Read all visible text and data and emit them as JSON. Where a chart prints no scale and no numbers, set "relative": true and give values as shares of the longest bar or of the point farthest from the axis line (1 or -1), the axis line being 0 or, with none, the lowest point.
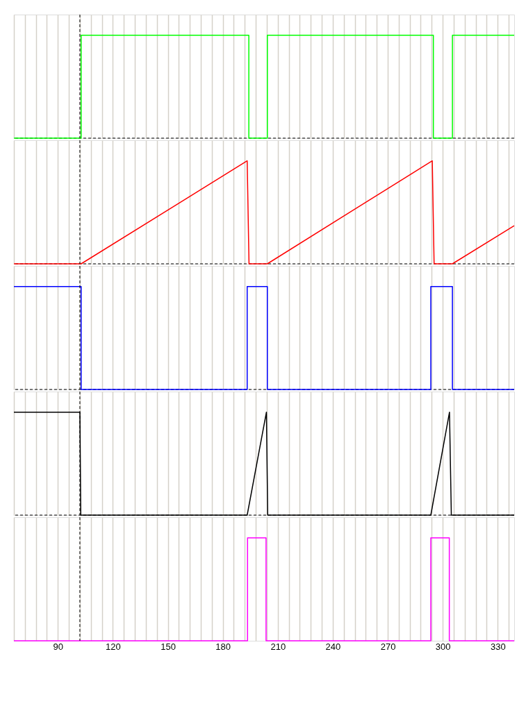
{
  "chart_data": [
    {
      "type": "line",
      "relative": true,
      "grid": "x",
      "tick_labels": false,
      "xlim": [
        66,
        339
      ],
      "xticks": [
        {
          "value": 66,
          "label": null
        },
        {
          "value": 72,
          "label": null
        },
        {
          "value": 78,
          "label": null
        },
        {
          "value": 84,
          "label": null
        },
        90,
        {
          "value": 96,
          "label": null
        },
        {
          "value": 102,
          "label": null
        },
        {
          "value": 108,
          "label": null
        },
        {
          "value": 114,
          "label": null
        },
        120,
        {
          "value": 126,
          "label": null
        },
        {
          "value": 132,
          "label": null
        },
        {
          "value": 138,
          "label": null
        },
        {
          "value": 144,
          "label": null
        },
        150,
        {
          "value": 156,
          "label": null
        },
        {
          "value": 162,
          "label": null
        },
        {
          "value": 168,
          "label": null
        },
        {
          "value": 174,
          "label": null
        },
        180,
        {
          "value": 186,
          "label": null
        },
        {
          "value": 192,
          "label": null
        },
        {
          "value": 198,
          "label": null
        },
        {
          "value": 204,
          "label": null
        },
        210,
        {
          "value": 216,
          "label": null
        },
        {
          "value": 222,
          "label": null
        },
        {
          "value": 228,
          "label": null
        },
        {
          "value": 234,
          "label": null
        },
        240,
        {
          "value": 246,
          "label": null
        },
        {
          "value": 252,
          "label": null
        },
        {
          "value": 258,
          "label": null
        },
        {
          "value": 264,
          "label": null
        },
        270,
        {
          "value": 276,
          "label": null
        },
        {
          "value": 282,
          "label": null
        },
        {
          "value": 288,
          "label": null
        },
        {
          "value": 294,
          "label": null
        },
        300,
        {
          "value": 306,
          "label": null
        },
        {
          "value": 312,
          "label": null
        },
        {
          "value": 318,
          "label": null
        },
        {
          "value": 324,
          "label": null
        },
        330,
        {
          "value": 336,
          "label": null
        }
      ],
      "series": [
        {
          "color": "#00ff00",
          "x": [
            66,
            102.7,
            102.7,
            194.2,
            194.2,
            204.3,
            204.3,
            294.9,
            294.9,
            305.3,
            305.3,
            339
          ],
          "values": [
            0,
            0,
            1,
            1,
            0,
            0,
            1,
            1,
            0,
            0,
            1,
            1
          ]
        }
      ],
      "ref_lines": [
        {
          "axis": "y",
          "value": 0,
          "line_style": "dashed",
          "color": "#000000"
        },
        {
          "axis": "x",
          "value": 102,
          "line_style": "dashed",
          "color": "#000000"
        }
      ]
    },
    {
      "type": "line",
      "relative": true,
      "grid": "x",
      "tick_labels": false,
      "xlim": [
        66,
        339
      ],
      "xticks": [
        {
          "value": 66,
          "label": null
        },
        {
          "value": 72,
          "label": null
        },
        {
          "value": 78,
          "label": null
        },
        {
          "value": 84,
          "label": null
        },
        90,
        {
          "value": 96,
          "label": null
        },
        {
          "value": 102,
          "label": null
        },
        {
          "value": 108,
          "label": null
        },
        {
          "value": 114,
          "label": null
        },
        120,
        {
          "value": 126,
          "label": null
        },
        {
          "value": 132,
          "label": null
        },
        {
          "value": 138,
          "label": null
        },
        {
          "value": 144,
          "label": null
        },
        150,
        {
          "value": 156,
          "label": null
        },
        {
          "value": 162,
          "label": null
        },
        {
          "value": 168,
          "label": null
        },
        {
          "value": 174,
          "label": null
        },
        180,
        {
          "value": 186,
          "label": null
        },
        {
          "value": 192,
          "label": null
        },
        {
          "value": 198,
          "label": null
        },
        {
          "value": 204,
          "label": null
        },
        210,
        {
          "value": 216,
          "label": null
        },
        {
          "value": 222,
          "label": null
        },
        {
          "value": 228,
          "label": null
        },
        {
          "value": 234,
          "label": null
        },
        240,
        {
          "value": 246,
          "label": null
        },
        {
          "value": 252,
          "label": null
        },
        {
          "value": 258,
          "label": null
        },
        {
          "value": 264,
          "label": null
        },
        270,
        {
          "value": 276,
          "label": null
        },
        {
          "value": 282,
          "label": null
        },
        {
          "value": 288,
          "label": null
        },
        {
          "value": 294,
          "label": null
        },
        300,
        {
          "value": 306,
          "label": null
        },
        {
          "value": 312,
          "label": null
        },
        {
          "value": 318,
          "label": null
        },
        {
          "value": 324,
          "label": null
        },
        330,
        {
          "value": 336,
          "label": null
        }
      ],
      "series": [
        {
          "color": "#ff0000",
          "x": [
            66,
            102.7,
            193.3,
            194.3,
            204.3,
            294.3,
            295.3,
            305.3,
            339
          ],
          "values": [
            0,
            0,
            1,
            0,
            0,
            1,
            0,
            0,
            0.37
          ]
        }
      ],
      "ref_lines": [
        {
          "axis": "y",
          "value": 0,
          "line_style": "dashed",
          "color": "#000000"
        },
        {
          "axis": "x",
          "value": 102,
          "line_style": "dashed",
          "color": "#000000"
        }
      ]
    },
    {
      "type": "line",
      "relative": true,
      "grid": "x",
      "tick_labels": false,
      "xlim": [
        66,
        339
      ],
      "xticks": [
        {
          "value": 66,
          "label": null
        },
        {
          "value": 72,
          "label": null
        },
        {
          "value": 78,
          "label": null
        },
        {
          "value": 84,
          "label": null
        },
        90,
        {
          "value": 96,
          "label": null
        },
        {
          "value": 102,
          "label": null
        },
        {
          "value": 108,
          "label": null
        },
        {
          "value": 114,
          "label": null
        },
        120,
        {
          "value": 126,
          "label": null
        },
        {
          "value": 132,
          "label": null
        },
        {
          "value": 138,
          "label": null
        },
        {
          "value": 144,
          "label": null
        },
        150,
        {
          "value": 156,
          "label": null
        },
        {
          "value": 162,
          "label": null
        },
        {
          "value": 168,
          "label": null
        },
        {
          "value": 174,
          "label": null
        },
        180,
        {
          "value": 186,
          "label": null
        },
        {
          "value": 192,
          "label": null
        },
        {
          "value": 198,
          "label": null
        },
        {
          "value": 204,
          "label": null
        },
        210,
        {
          "value": 216,
          "label": null
        },
        {
          "value": 222,
          "label": null
        },
        {
          "value": 228,
          "label": null
        },
        {
          "value": 234,
          "label": null
        },
        240,
        {
          "value": 246,
          "label": null
        },
        {
          "value": 252,
          "label": null
        },
        {
          "value": 258,
          "label": null
        },
        {
          "value": 264,
          "label": null
        },
        270,
        {
          "value": 276,
          "label": null
        },
        {
          "value": 282,
          "label": null
        },
        {
          "value": 288,
          "label": null
        },
        {
          "value": 294,
          "label": null
        },
        300,
        {
          "value": 306,
          "label": null
        },
        {
          "value": 312,
          "label": null
        },
        {
          "value": 318,
          "label": null
        },
        {
          "value": 324,
          "label": null
        },
        330,
        {
          "value": 336,
          "label": null
        }
      ],
      "series": [
        {
          "color": "#0000ff",
          "x": [
            66,
            102.7,
            102.7,
            193.3,
            193.3,
            204.3,
            204.3,
            293.5,
            293.5,
            305.3,
            305.3,
            339
          ],
          "values": [
            1,
            1,
            0,
            0,
            1,
            1,
            0,
            0,
            1,
            1,
            0,
            0
          ]
        }
      ],
      "ref_lines": [
        {
          "axis": "y",
          "value": 0,
          "line_style": "dashed",
          "color": "#000000"
        },
        {
          "axis": "x",
          "value": 102,
          "line_style": "dashed",
          "color": "#000000"
        }
      ]
    },
    {
      "type": "line",
      "relative": true,
      "grid": "x",
      "tick_labels": false,
      "xlim": [
        66,
        339
      ],
      "xticks": [
        {
          "value": 66,
          "label": null
        },
        {
          "value": 72,
          "label": null
        },
        {
          "value": 78,
          "label": null
        },
        {
          "value": 84,
          "label": null
        },
        90,
        {
          "value": 96,
          "label": null
        },
        {
          "value": 102,
          "label": null
        },
        {
          "value": 108,
          "label": null
        },
        {
          "value": 114,
          "label": null
        },
        120,
        {
          "value": 126,
          "label": null
        },
        {
          "value": 132,
          "label": null
        },
        {
          "value": 138,
          "label": null
        },
        {
          "value": 144,
          "label": null
        },
        150,
        {
          "value": 156,
          "label": null
        },
        {
          "value": 162,
          "label": null
        },
        {
          "value": 168,
          "label": null
        },
        {
          "value": 174,
          "label": null
        },
        180,
        {
          "value": 186,
          "label": null
        },
        {
          "value": 192,
          "label": null
        },
        {
          "value": 198,
          "label": null
        },
        {
          "value": 204,
          "label": null
        },
        210,
        {
          "value": 216,
          "label": null
        },
        {
          "value": 222,
          "label": null
        },
        {
          "value": 228,
          "label": null
        },
        {
          "value": 234,
          "label": null
        },
        240,
        {
          "value": 246,
          "label": null
        },
        {
          "value": 252,
          "label": null
        },
        {
          "value": 258,
          "label": null
        },
        {
          "value": 264,
          "label": null
        },
        270,
        {
          "value": 276,
          "label": null
        },
        {
          "value": 282,
          "label": null
        },
        {
          "value": 288,
          "label": null
        },
        {
          "value": 294,
          "label": null
        },
        300,
        {
          "value": 306,
          "label": null
        },
        {
          "value": 312,
          "label": null
        },
        {
          "value": 318,
          "label": null
        },
        {
          "value": 324,
          "label": null
        },
        330,
        {
          "value": 336,
          "label": null
        }
      ],
      "series": [
        {
          "color": "#000000",
          "x": [
            66,
            102,
            102.5,
            193.3,
            203.8,
            204.5,
            293.5,
            303.7,
            304.7,
            339
          ],
          "values": [
            1,
            1,
            0,
            0,
            1,
            0,
            0,
            1,
            0,
            0
          ]
        }
      ],
      "ref_lines": [
        {
          "axis": "y",
          "value": 0,
          "line_style": "dashed",
          "color": "#000000"
        },
        {
          "axis": "x",
          "value": 102,
          "line_style": "dashed",
          "color": "#000000"
        }
      ]
    },
    {
      "type": "line",
      "relative": true,
      "grid": "x",
      "tick_labels": "x",
      "xlim": [
        66,
        339
      ],
      "xticks": [
        {
          "value": 66,
          "label": null
        },
        {
          "value": 72,
          "label": null
        },
        {
          "value": 78,
          "label": null
        },
        {
          "value": 84,
          "label": null
        },
        90,
        {
          "value": 96,
          "label": null
        },
        {
          "value": 102,
          "label": null
        },
        {
          "value": 108,
          "label": null
        },
        {
          "value": 114,
          "label": null
        },
        120,
        {
          "value": 126,
          "label": null
        },
        {
          "value": 132,
          "label": null
        },
        {
          "value": 138,
          "label": null
        },
        {
          "value": 144,
          "label": null
        },
        150,
        {
          "value": 156,
          "label": null
        },
        {
          "value": 162,
          "label": null
        },
        {
          "value": 168,
          "label": null
        },
        {
          "value": 174,
          "label": null
        },
        180,
        {
          "value": 186,
          "label": null
        },
        {
          "value": 192,
          "label": null
        },
        {
          "value": 198,
          "label": null
        },
        {
          "value": 204,
          "label": null
        },
        210,
        {
          "value": 216,
          "label": null
        },
        {
          "value": 222,
          "label": null
        },
        {
          "value": 228,
          "label": null
        },
        {
          "value": 234,
          "label": null
        },
        240,
        {
          "value": 246,
          "label": null
        },
        {
          "value": 252,
          "label": null
        },
        {
          "value": 258,
          "label": null
        },
        {
          "value": 264,
          "label": null
        },
        270,
        {
          "value": 276,
          "label": null
        },
        {
          "value": 282,
          "label": null
        },
        {
          "value": 288,
          "label": null
        },
        {
          "value": 294,
          "label": null
        },
        300,
        {
          "value": 306,
          "label": null
        },
        {
          "value": 312,
          "label": null
        },
        {
          "value": 318,
          "label": null
        },
        {
          "value": 324,
          "label": null
        },
        330,
        {
          "value": 336,
          "label": null
        }
      ],
      "series": [
        {
          "color": "#ff00ff",
          "x": [
            66,
            193.5,
            193.5,
            203.6,
            203.6,
            293.5,
            293.5,
            303.6,
            303.6,
            339
          ],
          "values": [
            0,
            0,
            1,
            1,
            0,
            0,
            1,
            1,
            0,
            0
          ]
        }
      ],
      "ref_lines": [
        {
          "axis": "x",
          "value": 102,
          "line_style": "dashed",
          "color": "#000000"
        }
      ]
    }
  ]
}
